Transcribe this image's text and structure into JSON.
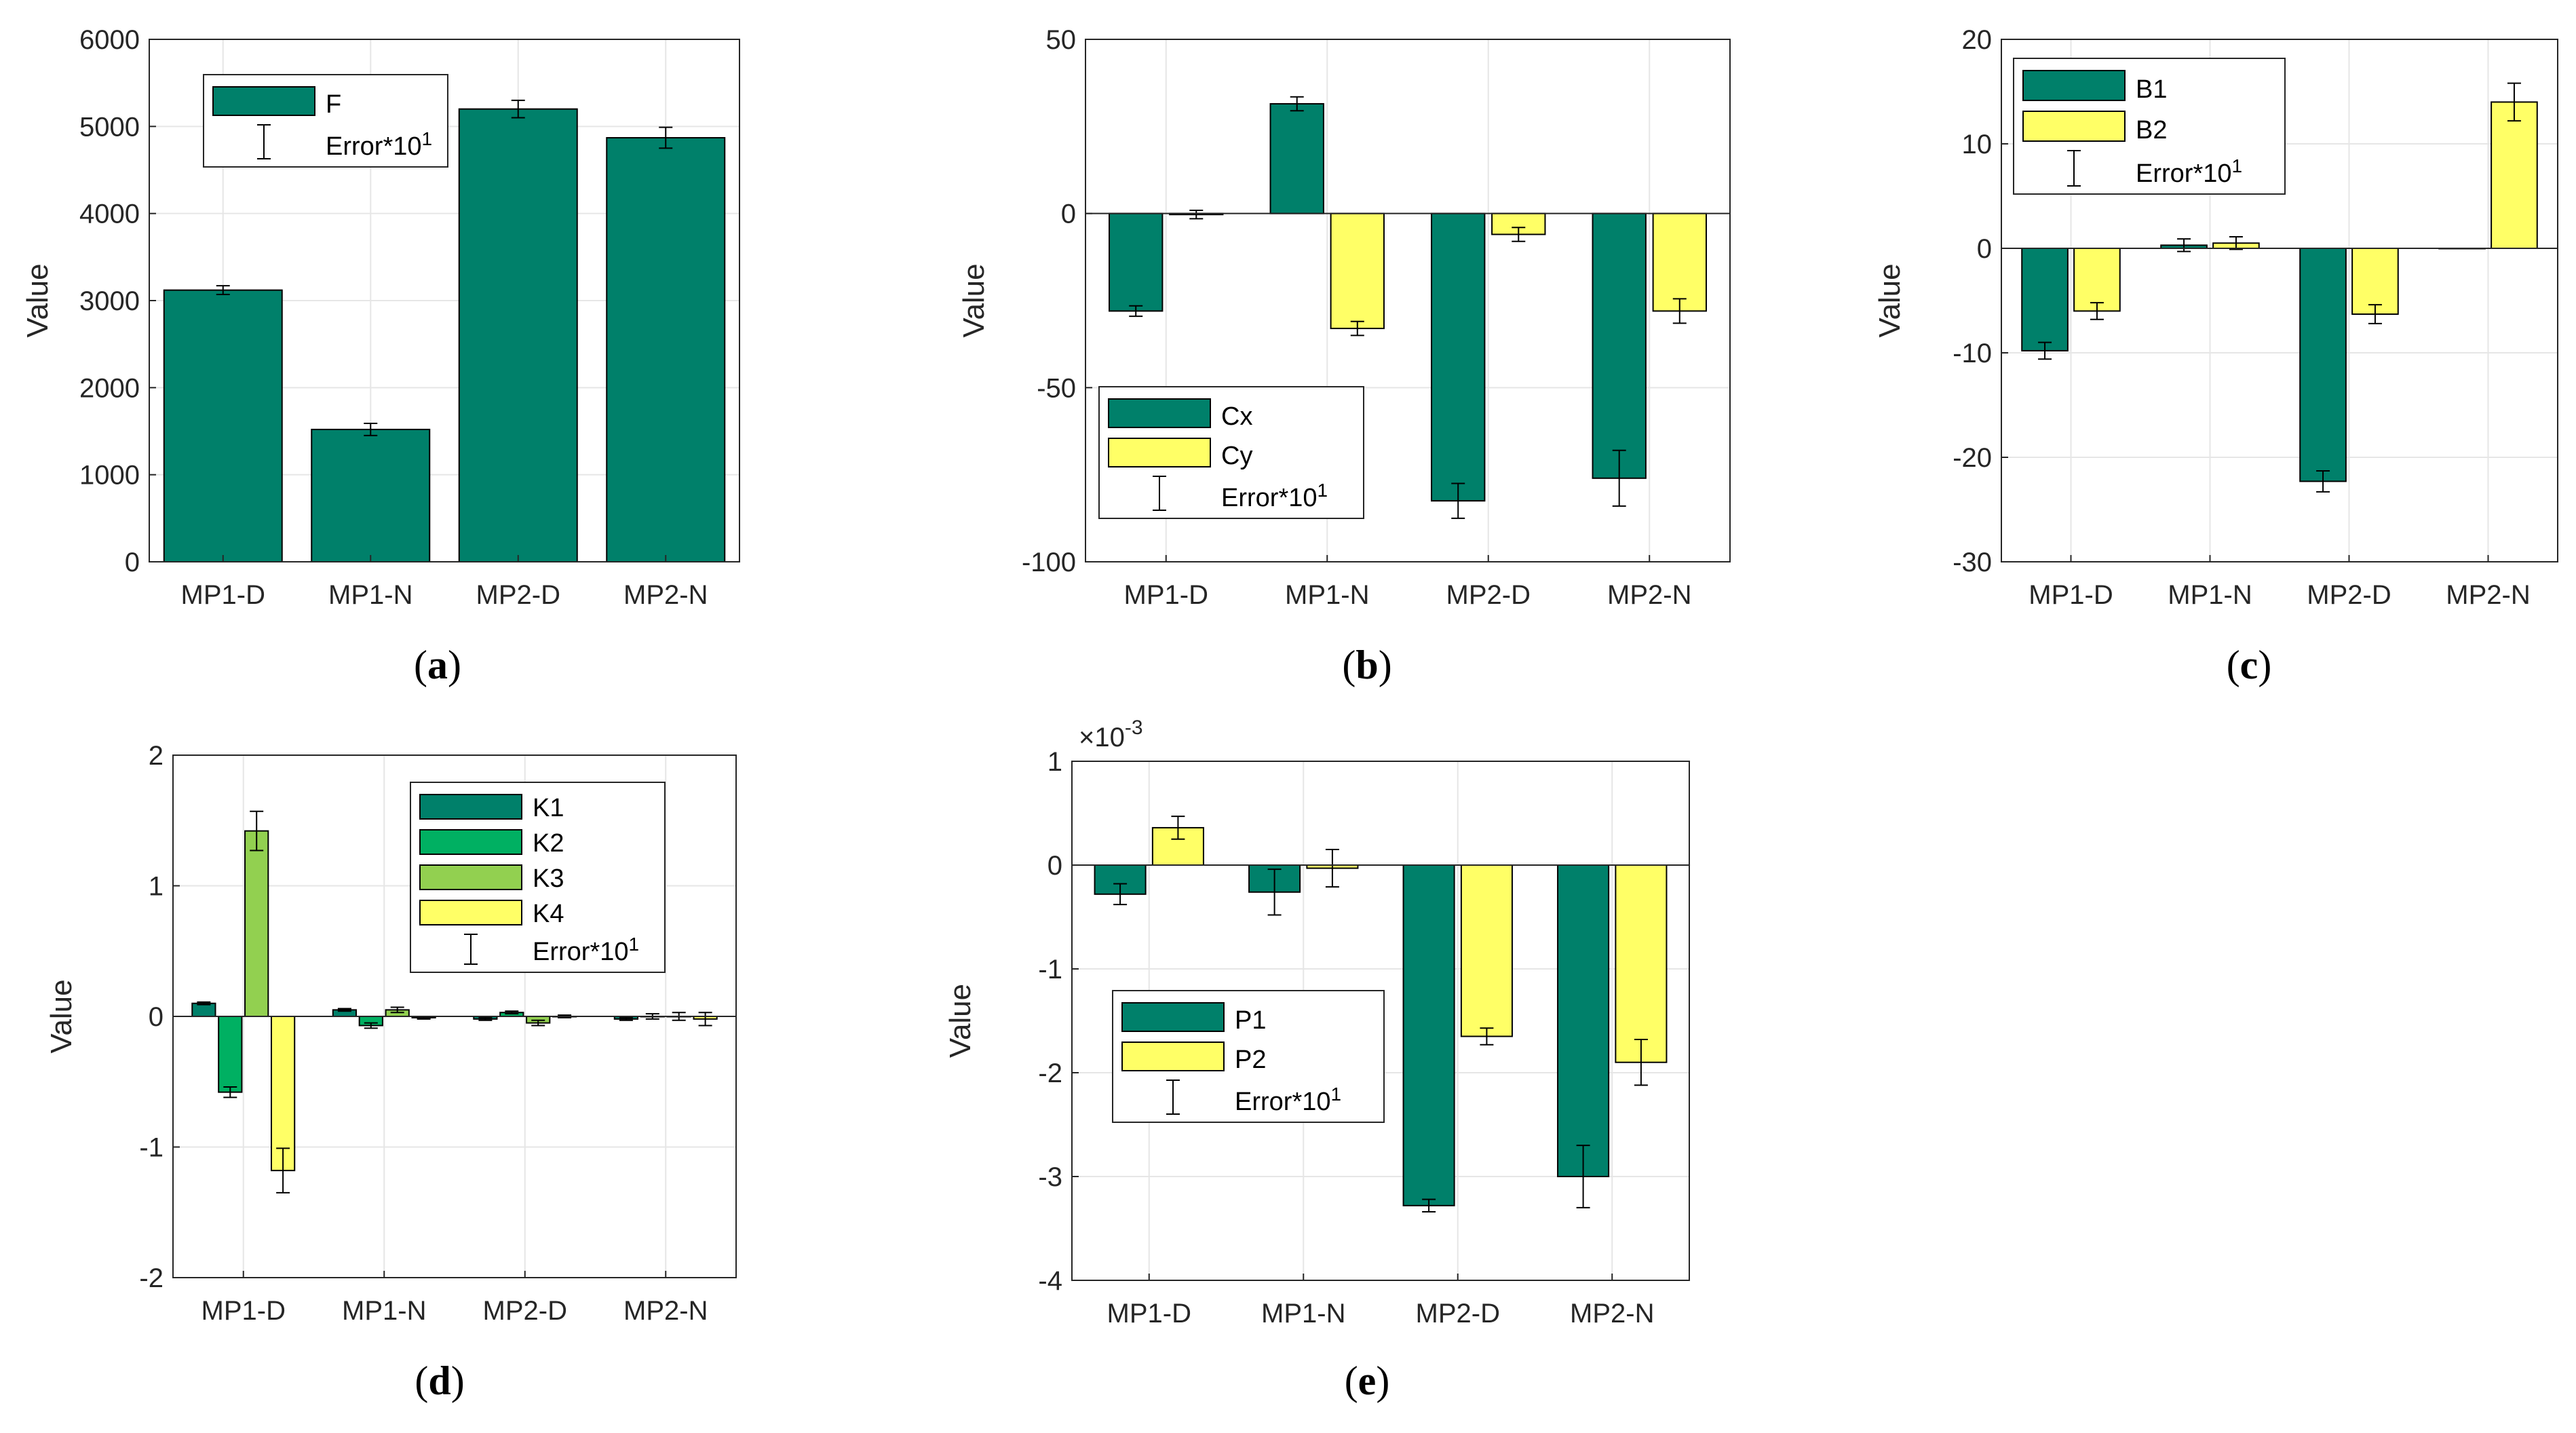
{
  "colors": {
    "green_dark": "#00806a",
    "green_med": "#00b062",
    "green_light": "#92d050",
    "yellow": "#ffff66",
    "frame": "#262626",
    "grid": "#e6e6e6"
  },
  "chart_data": [
    {
      "id": "a",
      "type": "bar",
      "caption": "a",
      "categories": [
        "MP1-D",
        "MP1-N",
        "MP2-D",
        "MP2-N"
      ],
      "series": [
        {
          "name": "F",
          "color": "#00806a",
          "values": [
            3120,
            1520,
            5200,
            4870
          ],
          "errors": [
            50,
            70,
            100,
            120
          ]
        }
      ],
      "ylabel": "Value",
      "ylim": [
        0,
        6000
      ],
      "yticks": [
        0,
        1000,
        2000,
        3000,
        4000,
        5000,
        6000
      ],
      "ytick_labels": [
        "0",
        "1000",
        "2000",
        "3000",
        "4000",
        "5000",
        "6000"
      ],
      "legend": {
        "entries": [
          "F"
        ],
        "error_label": "Error*10",
        "error_exp": "1",
        "placement": "top-left"
      }
    },
    {
      "id": "b",
      "type": "bar",
      "caption": "b",
      "categories": [
        "MP1-D",
        "MP1-N",
        "MP2-D",
        "MP2-N"
      ],
      "series": [
        {
          "name": "Cx",
          "color": "#00806a",
          "values": [
            -28,
            31.5,
            -82.5,
            -76
          ],
          "errors": [
            1.5,
            2,
            5,
            8
          ]
        },
        {
          "name": "Cy",
          "color": "#ffff66",
          "values": [
            -0.3,
            -33,
            -6,
            -28
          ],
          "errors": [
            1.2,
            2,
            2,
            3.5
          ]
        }
      ],
      "ylabel": "Value",
      "ylim": [
        -100,
        50
      ],
      "yticks": [
        -100,
        -50,
        0,
        50
      ],
      "ytick_labels": [
        "-100",
        "-50",
        "0",
        "50"
      ],
      "legend": {
        "entries": [
          "Cx",
          "Cy"
        ],
        "error_label": "Error*10",
        "error_exp": "1",
        "placement": "bottom-left"
      }
    },
    {
      "id": "c",
      "type": "bar",
      "caption": "c",
      "categories": [
        "MP1-D",
        "MP1-N",
        "MP2-D",
        "MP2-N"
      ],
      "series": [
        {
          "name": "B1",
          "color": "#00806a",
          "values": [
            -9.8,
            0.3,
            -22.3,
            0
          ],
          "errors": [
            0.8,
            0.6,
            1,
            0
          ]
        },
        {
          "name": "B2",
          "color": "#ffff66",
          "values": [
            -6,
            0.5,
            -6.3,
            14
          ],
          "errors": [
            0.8,
            0.6,
            0.9,
            1.8
          ]
        }
      ],
      "ylabel": "Value",
      "ylim": [
        -30,
        20
      ],
      "yticks": [
        -30,
        -20,
        -10,
        0,
        10,
        20
      ],
      "ytick_labels": [
        "-30",
        "-20",
        "-10",
        "0",
        "10",
        "20"
      ],
      "legend": {
        "entries": [
          "B1",
          "B2"
        ],
        "error_label": "Error*10",
        "error_exp": "1",
        "placement": "top-left"
      }
    },
    {
      "id": "d",
      "type": "bar",
      "caption": "d",
      "categories": [
        "MP1-D",
        "MP1-N",
        "MP2-D",
        "MP2-N"
      ],
      "series": [
        {
          "name": "K1",
          "color": "#00806a",
          "values": [
            0.1,
            0.05,
            -0.02,
            -0.02
          ],
          "errors": [
            0.01,
            0.01,
            0.01,
            0.01
          ]
        },
        {
          "name": "K2",
          "color": "#00b062",
          "values": [
            -0.58,
            -0.07,
            0.03,
            0
          ],
          "errors": [
            0.04,
            0.02,
            0.01,
            0.02
          ]
        },
        {
          "name": "K3",
          "color": "#92d050",
          "values": [
            1.42,
            0.05,
            -0.05,
            0
          ],
          "errors": [
            0.15,
            0.02,
            0.02,
            0.03
          ]
        },
        {
          "name": "K4",
          "color": "#ffff66",
          "values": [
            -1.18,
            -0.01,
            0,
            -0.02
          ],
          "errors": [
            0.17,
            0.01,
            0.01,
            0.05
          ]
        }
      ],
      "ylabel": "Value",
      "ylim": [
        -2,
        2
      ],
      "yticks": [
        -2,
        -1,
        0,
        1,
        2
      ],
      "ytick_labels": [
        "-2",
        "-1",
        "0",
        "1",
        "2"
      ],
      "legend": {
        "entries": [
          "K1",
          "K2",
          "K3",
          "K4"
        ],
        "error_label": "Error*10",
        "error_exp": "1",
        "placement": "top-right"
      }
    },
    {
      "id": "e",
      "type": "bar",
      "caption": "e",
      "categories": [
        "MP1-D",
        "MP1-N",
        "MP2-D",
        "MP2-N"
      ],
      "series": [
        {
          "name": "P1",
          "color": "#00806a",
          "values": [
            -0.00028,
            -0.00026,
            -0.00328,
            -0.003
          ],
          "errors": [
            0.0001,
            0.00022,
            6e-05,
            0.0003
          ]
        },
        {
          "name": "P2",
          "color": "#ffff66",
          "values": [
            0.00036,
            -3e-05,
            -0.00165,
            -0.0019
          ],
          "errors": [
            0.00011,
            0.00018,
            8e-05,
            0.00022
          ]
        }
      ],
      "ylabel": "Value",
      "ylim": [
        -0.004,
        0.001
      ],
      "yticks": [
        -0.004,
        -0.003,
        -0.002,
        -0.001,
        0,
        0.001
      ],
      "ytick_labels": [
        "-4",
        "-3",
        "-2",
        "-1",
        "0",
        "1"
      ],
      "scale_label": "×10",
      "scale_exp": "-3",
      "legend": {
        "entries": [
          "P1",
          "P2"
        ],
        "error_label": "Error*10",
        "error_exp": "1",
        "placement": "left"
      }
    }
  ]
}
